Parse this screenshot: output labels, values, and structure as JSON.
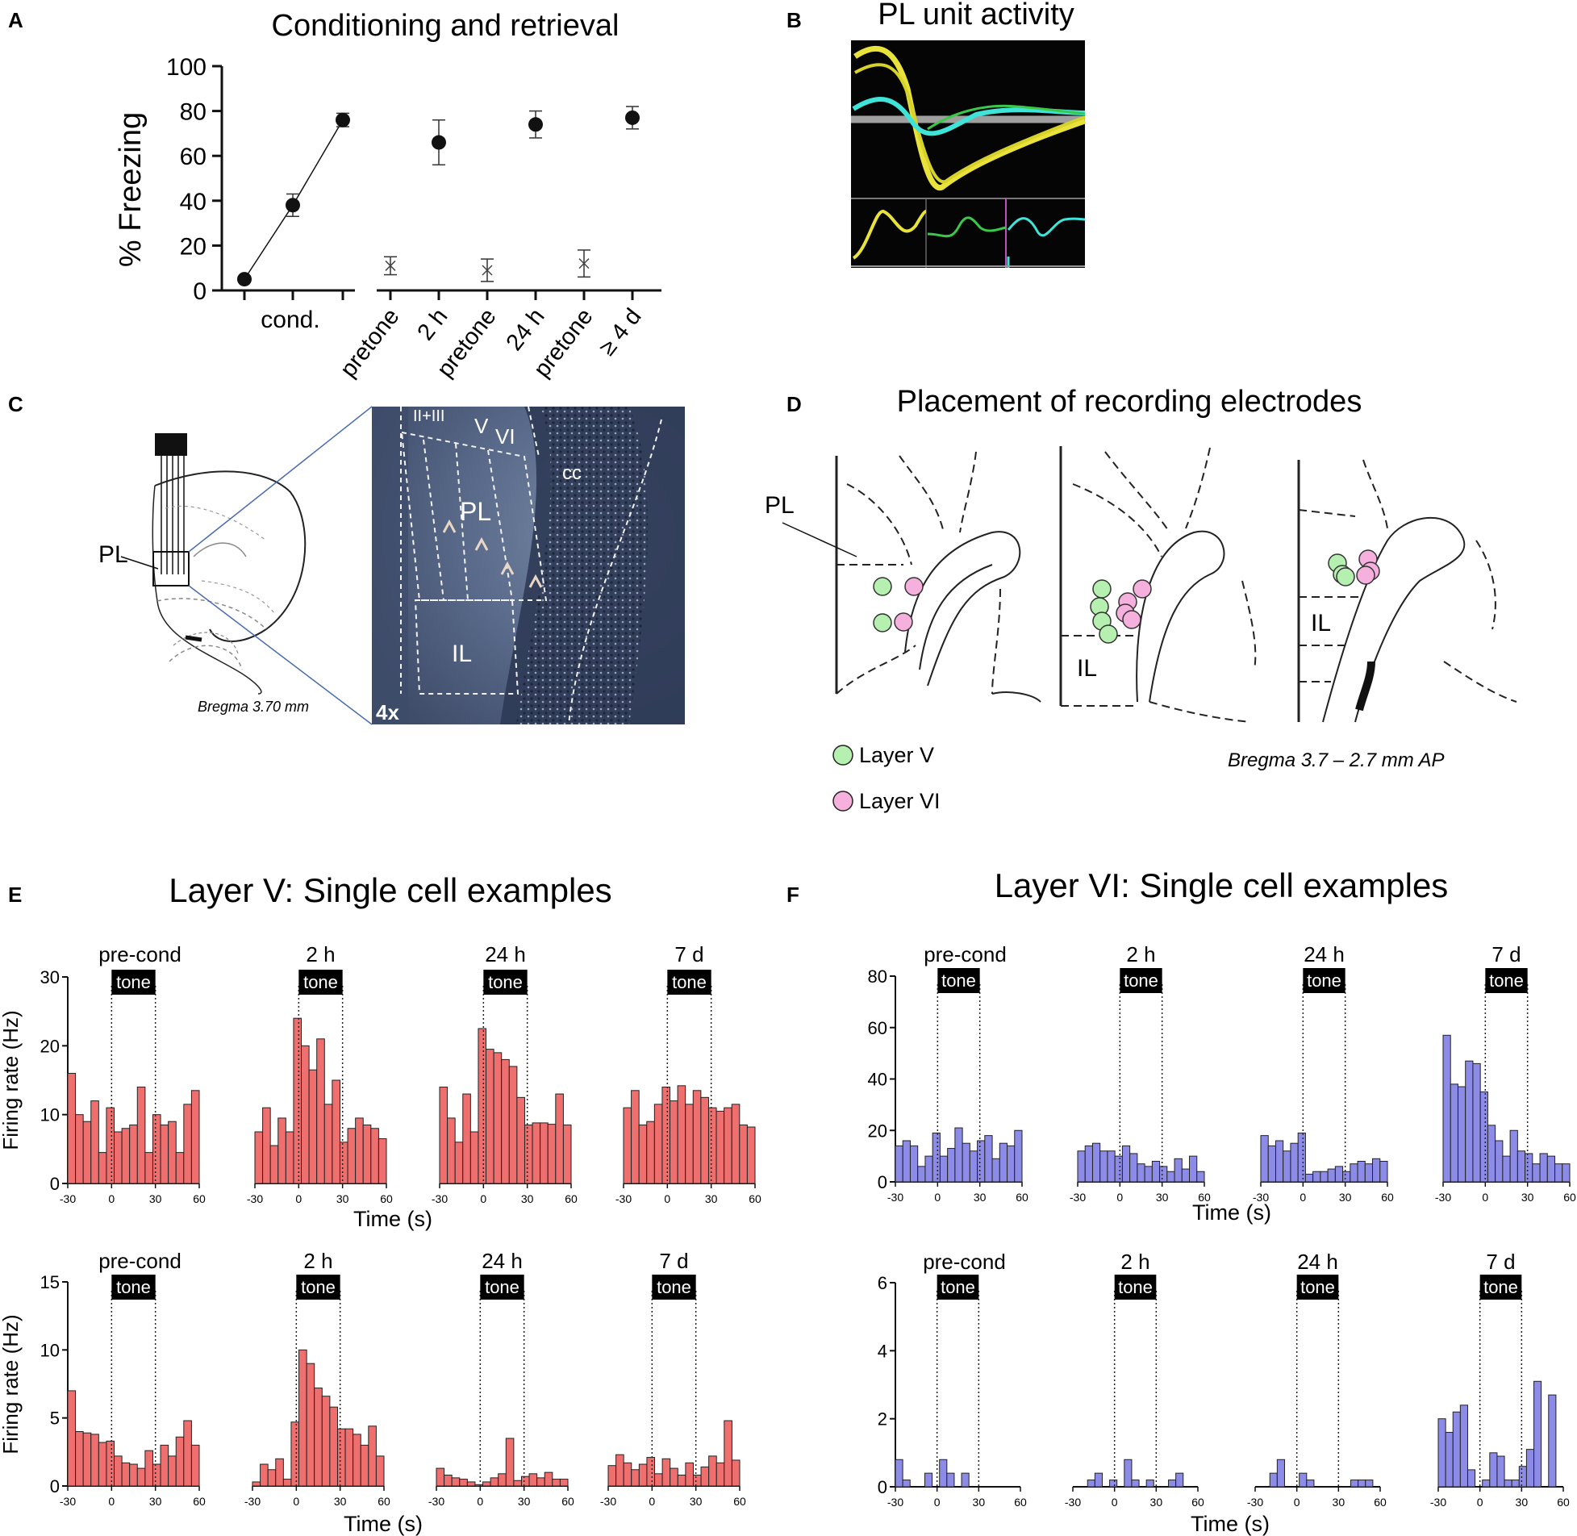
{
  "panels": {
    "A": {
      "letter": "A",
      "title": "Conditioning and retrieval",
      "ylabel": "% Freezing",
      "cond_label": "cond.",
      "retrieval_labels": [
        "pretone",
        "2 h",
        "pretone",
        "24 h",
        "pretone",
        "≥ 4 d"
      ]
    },
    "B": {
      "letter": "B",
      "title": "PL unit activity"
    },
    "C": {
      "letter": "C",
      "pl_label": "PL",
      "bregma": "Bregma 3.70 mm",
      "micro_labels": {
        "layers23": "II+III",
        "v": "V",
        "vi": "VI",
        "cc": "cc",
        "pl": "PL",
        "il": "IL",
        "mag": "4x"
      }
    },
    "D": {
      "letter": "D",
      "title": "Placement of recording electrodes",
      "pl_label": "PL",
      "il_label": "IL",
      "legend": [
        {
          "label": "Layer V",
          "color": "#b6f0b0"
        },
        {
          "label": "Layer VI",
          "color": "#f6b0de"
        }
      ],
      "bregma": "Bregma 3.7 – 2.7 mm AP"
    },
    "E": {
      "letter": "E",
      "title": "Layer V: Single cell examples",
      "color": "#ef6f6f"
    },
    "F": {
      "letter": "F",
      "title": "Layer VI: Single cell examples",
      "color": "#8c8ce8"
    }
  },
  "hist_labels": {
    "conditions": [
      "pre-cond",
      "2 h",
      "24 h",
      "7 d"
    ],
    "tone": "tone",
    "xlabel": "Time (s)",
    "ylabel": "Firing rate (Hz)",
    "xticks": [
      "-30",
      "0",
      "30",
      "60"
    ]
  },
  "chart_data": [
    {
      "id": "A",
      "type": "scatter",
      "title": "Conditioning and retrieval",
      "ylabel": "% Freezing",
      "ylim": [
        0,
        100
      ],
      "yticks": [
        "0",
        "20",
        "40",
        "60",
        "80",
        "100"
      ],
      "conditioning": {
        "label": "cond.",
        "values": [
          5,
          38,
          76
        ],
        "errors": [
          0,
          5,
          3
        ]
      },
      "retrieval": {
        "categories": [
          "pretone",
          "2 h",
          "pretone",
          "24 h",
          "pretone",
          "≥ 4 d"
        ],
        "values": [
          11,
          66,
          9,
          74,
          12,
          77
        ],
        "errors": [
          4,
          10,
          5,
          6,
          6,
          5
        ],
        "marker": [
          "cross",
          "dot",
          "cross",
          "dot",
          "cross",
          "dot"
        ]
      }
    },
    {
      "id": "E-top",
      "type": "bar",
      "ymax": 30,
      "yticks": [
        "0",
        "10",
        "20",
        "30"
      ],
      "bins_s": [
        -30,
        60
      ],
      "tone_s": [
        0,
        30
      ],
      "series": [
        {
          "name": "pre-cond",
          "values": [
            16,
            10,
            9,
            12,
            4.5,
            11,
            7.5,
            8,
            8.5,
            14,
            4.5,
            10,
            8.5,
            9,
            4.5,
            11.5,
            13.5
          ]
        },
        {
          "name": "2 h",
          "values": [
            7.5,
            11,
            5.5,
            9.5,
            7.5,
            24,
            20,
            16.5,
            21,
            11.5,
            15,
            6,
            8,
            9.5,
            8.5,
            8,
            6.5
          ]
        },
        {
          "name": "24 h",
          "values": [
            14,
            9.5,
            6,
            13,
            7.5,
            22.5,
            19.5,
            19,
            18,
            17,
            12.5,
            8.5,
            8.8,
            8.8,
            8.6,
            13,
            8.5
          ]
        },
        {
          "name": "7 d",
          "values": [
            11,
            13.5,
            8.5,
            9,
            11.5,
            14,
            12,
            14.2,
            11.5,
            13.5,
            12.5,
            11,
            10.5,
            11,
            11.5,
            8.5,
            8.2
          ]
        }
      ]
    },
    {
      "id": "E-bottom",
      "type": "bar",
      "ymax": 15,
      "yticks": [
        "0",
        "5",
        "10",
        "15"
      ],
      "bins_s": [
        -30,
        60
      ],
      "tone_s": [
        0,
        30
      ],
      "series": [
        {
          "name": "pre-cond",
          "values": [
            7,
            4,
            3.9,
            3.8,
            3.2,
            3.3,
            2.2,
            1.7,
            1.6,
            1.3,
            2.6,
            1.6,
            3,
            2.2,
            3.6,
            4.8,
            3
          ]
        },
        {
          "name": "2 h",
          "values": [
            0.3,
            1.6,
            1.2,
            2,
            0.5,
            4.7,
            10,
            9,
            7.2,
            6.6,
            5.8,
            4.2,
            4.2,
            3.8,
            3,
            4.4,
            2.2
          ]
        },
        {
          "name": "24 h",
          "values": [
            1.3,
            0.8,
            0.6,
            0.5,
            0.3,
            0.1,
            0.3,
            0.6,
            0.9,
            3.5,
            0.4,
            0.7,
            0.9,
            0.6,
            1,
            0.5,
            0.5
          ]
        },
        {
          "name": "7 d",
          "values": [
            1.5,
            2.3,
            1.7,
            1.2,
            1.6,
            2.1,
            0.9,
            2,
            1.3,
            0.8,
            1.7,
            0.8,
            1.4,
            2.2,
            1.7,
            4.8,
            1.9
          ]
        }
      ]
    },
    {
      "id": "F-top",
      "type": "bar",
      "ymax": 80,
      "yticks": [
        "0",
        "20",
        "40",
        "60",
        "80"
      ],
      "bins_s": [
        -30,
        60
      ],
      "tone_s": [
        0,
        30
      ],
      "series": [
        {
          "name": "pre-cond",
          "values": [
            14,
            16,
            14,
            6,
            10,
            19,
            10,
            13,
            21,
            15,
            12,
            16,
            18,
            9,
            15,
            14,
            20
          ]
        },
        {
          "name": "2 h",
          "values": [
            12,
            14,
            15,
            12,
            12,
            10,
            14,
            11,
            7,
            6,
            8,
            6,
            4,
            9,
            5,
            10,
            4
          ]
        },
        {
          "name": "24 h",
          "values": [
            18,
            14,
            16,
            12,
            15,
            19,
            3,
            4,
            4,
            5,
            6,
            4,
            7,
            8,
            7,
            9,
            8
          ]
        },
        {
          "name": "7 d",
          "values": [
            57,
            38,
            37,
            47,
            46,
            35,
            22,
            16,
            10,
            20,
            12,
            11,
            7,
            11,
            10,
            7,
            7
          ]
        }
      ]
    },
    {
      "id": "F-bottom",
      "type": "bar",
      "ymax": 6,
      "yticks": [
        "0",
        "2",
        "4",
        "6"
      ],
      "bins_s": [
        -30,
        60
      ],
      "tone_s": [
        0,
        30
      ],
      "series": [
        {
          "name": "pre-cond",
          "values": [
            0.8,
            0.2,
            0,
            0,
            0.4,
            0,
            0.8,
            0.4,
            0,
            0.4,
            0,
            0,
            0,
            0,
            0,
            0,
            0
          ]
        },
        {
          "name": "2 h",
          "values": [
            0,
            0,
            0.2,
            0.4,
            0,
            0.2,
            0,
            0.8,
            0.2,
            0,
            0.2,
            0,
            0,
            0.2,
            0.4,
            0,
            0
          ]
        },
        {
          "name": "24 h",
          "values": [
            0,
            0,
            0.4,
            0.8,
            0,
            0,
            0.4,
            0.2,
            0,
            0,
            0,
            0,
            0,
            0.2,
            0.2,
            0.2,
            0
          ]
        },
        {
          "name": "7 d",
          "values": [
            2,
            1.6,
            2.2,
            2.4,
            0.5,
            0,
            0.2,
            1,
            0.9,
            0.2,
            0.2,
            0.6,
            1.1,
            3.1,
            0,
            2.7,
            0
          ]
        }
      ]
    }
  ]
}
